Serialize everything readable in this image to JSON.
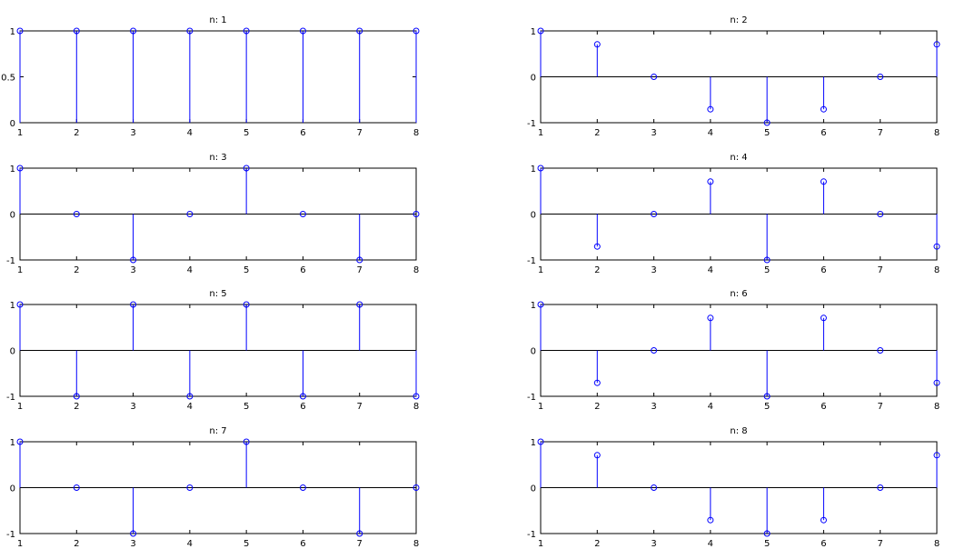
{
  "colors": {
    "stem": "#0000ff",
    "axes": "#000000",
    "background": "#ffffff"
  },
  "chart_data": [
    {
      "type": "stem",
      "title": "n: 1",
      "x": [
        1,
        2,
        3,
        4,
        5,
        6,
        7,
        8
      ],
      "y": [
        1,
        1,
        1,
        1,
        1,
        1,
        1,
        1
      ],
      "xlim": [
        1,
        8
      ],
      "ylim": [
        0,
        1
      ],
      "xticks": [
        "1",
        "2",
        "3",
        "4",
        "5",
        "6",
        "7",
        "8"
      ],
      "yticks": [
        0,
        0.5,
        1
      ],
      "ytick_labels": [
        "0",
        "0.5",
        "1"
      ]
    },
    {
      "type": "stem",
      "title": "n: 2",
      "x": [
        1,
        2,
        3,
        4,
        5,
        6,
        7,
        8
      ],
      "y": [
        1,
        0.707,
        0,
        -0.707,
        -1,
        -0.707,
        0,
        0.707
      ],
      "xlim": [
        1,
        8
      ],
      "ylim": [
        -1,
        1
      ],
      "xticks": [
        "1",
        "2",
        "3",
        "4",
        "5",
        "6",
        "7",
        "8"
      ],
      "yticks": [
        -1,
        0,
        1
      ],
      "ytick_labels": [
        "-1",
        "0",
        "1"
      ]
    },
    {
      "type": "stem",
      "title": "n: 3",
      "x": [
        1,
        2,
        3,
        4,
        5,
        6,
        7,
        8
      ],
      "y": [
        1,
        0,
        -1,
        0,
        1,
        0,
        -1,
        0
      ],
      "xlim": [
        1,
        8
      ],
      "ylim": [
        -1,
        1
      ],
      "xticks": [
        "1",
        "2",
        "3",
        "4",
        "5",
        "6",
        "7",
        "8"
      ],
      "yticks": [
        -1,
        0,
        1
      ],
      "ytick_labels": [
        "-1",
        "0",
        "1"
      ]
    },
    {
      "type": "stem",
      "title": "n: 4",
      "x": [
        1,
        2,
        3,
        4,
        5,
        6,
        7,
        8
      ],
      "y": [
        1,
        -0.707,
        0,
        0.707,
        -1,
        0.707,
        0,
        -0.707
      ],
      "xlim": [
        1,
        8
      ],
      "ylim": [
        -1,
        1
      ],
      "xticks": [
        "1",
        "2",
        "3",
        "4",
        "5",
        "6",
        "7",
        "8"
      ],
      "yticks": [
        -1,
        0,
        1
      ],
      "ytick_labels": [
        "-1",
        "0",
        "1"
      ]
    },
    {
      "type": "stem",
      "title": "n: 5",
      "x": [
        1,
        2,
        3,
        4,
        5,
        6,
        7,
        8
      ],
      "y": [
        1,
        -1,
        1,
        -1,
        1,
        -1,
        1,
        -1
      ],
      "xlim": [
        1,
        8
      ],
      "ylim": [
        -1,
        1
      ],
      "xticks": [
        "1",
        "2",
        "3",
        "4",
        "5",
        "6",
        "7",
        "8"
      ],
      "yticks": [
        -1,
        0,
        1
      ],
      "ytick_labels": [
        "-1",
        "0",
        "1"
      ]
    },
    {
      "type": "stem",
      "title": "n: 6",
      "x": [
        1,
        2,
        3,
        4,
        5,
        6,
        7,
        8
      ],
      "y": [
        1,
        -0.707,
        0,
        0.707,
        -1,
        0.707,
        0,
        -0.707
      ],
      "xlim": [
        1,
        8
      ],
      "ylim": [
        -1,
        1
      ],
      "xticks": [
        "1",
        "2",
        "3",
        "4",
        "5",
        "6",
        "7",
        "8"
      ],
      "yticks": [
        -1,
        0,
        1
      ],
      "ytick_labels": [
        "-1",
        "0",
        "1"
      ]
    },
    {
      "type": "stem",
      "title": "n: 7",
      "x": [
        1,
        2,
        3,
        4,
        5,
        6,
        7,
        8
      ],
      "y": [
        1,
        0,
        -1,
        0,
        1,
        0,
        -1,
        0
      ],
      "xlim": [
        1,
        8
      ],
      "ylim": [
        -1,
        1
      ],
      "xticks": [
        "1",
        "2",
        "3",
        "4",
        "5",
        "6",
        "7",
        "8"
      ],
      "yticks": [
        -1,
        0,
        1
      ],
      "ytick_labels": [
        "-1",
        "0",
        "1"
      ]
    },
    {
      "type": "stem",
      "title": "n: 8",
      "x": [
        1,
        2,
        3,
        4,
        5,
        6,
        7,
        8
      ],
      "y": [
        1,
        0.707,
        0,
        -0.707,
        -1,
        -0.707,
        0,
        0.707
      ],
      "xlim": [
        1,
        8
      ],
      "ylim": [
        -1,
        1
      ],
      "xticks": [
        "1",
        "2",
        "3",
        "4",
        "5",
        "6",
        "7",
        "8"
      ],
      "yticks": [
        -1,
        0,
        1
      ],
      "ytick_labels": [
        "-1",
        "0",
        "1"
      ]
    }
  ]
}
